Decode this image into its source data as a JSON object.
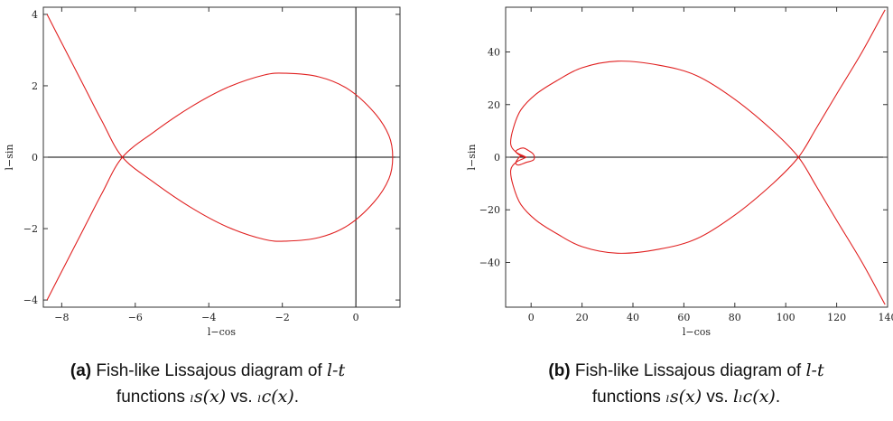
{
  "chart_data": [
    {
      "id": "a",
      "type": "line",
      "xlabel": "l−cos",
      "ylabel": "l−sin",
      "xlim": [
        -8.5,
        1.2
      ],
      "ylim": [
        -4.2,
        4.2
      ],
      "xticks": [
        -8,
        -6,
        -4,
        -2,
        0
      ],
      "xtick_labels": [
        "−8",
        "−6",
        "−4",
        "−2",
        "0"
      ],
      "yticks": [
        -4,
        -2,
        0,
        2,
        4
      ],
      "ytick_labels": [
        "−4",
        "−2",
        "0",
        "2",
        "4"
      ],
      "grid": false,
      "origin_axes": true,
      "series": [
        {
          "color": "#e02020",
          "x": [
            -8.4,
            -7.9,
            -7.4,
            -6.9,
            -6.35,
            -5.5,
            -4.5,
            -3.5,
            -2.5,
            -1.9,
            -1.0,
            -0.2,
            0.5,
            0.9,
            1.0,
            0.9,
            0.5,
            -0.2,
            -1.0,
            -1.9,
            -2.5,
            -3.5,
            -4.5,
            -5.5,
            -6.35,
            -6.9,
            -7.4,
            -7.9,
            -8.4
          ],
          "y": [
            -4.0,
            -3.0,
            -2.0,
            -1.0,
            0.0,
            0.7,
            1.4,
            1.95,
            2.3,
            2.35,
            2.25,
            1.9,
            1.25,
            0.6,
            0.0,
            -0.6,
            -1.25,
            -1.9,
            -2.25,
            -2.35,
            -2.3,
            -1.95,
            -1.4,
            -0.7,
            0.0,
            1.0,
            2.0,
            3.0,
            4.0
          ]
        }
      ]
    },
    {
      "id": "b",
      "type": "line",
      "xlabel": "l−cos",
      "ylabel": "l−sin",
      "xlim": [
        -10,
        140
      ],
      "ylim": [
        -57,
        57
      ],
      "xticks": [
        0,
        20,
        40,
        60,
        80,
        100,
        120,
        140
      ],
      "xtick_labels": [
        "0",
        "20",
        "40",
        "60",
        "80",
        "100",
        "120",
        "140"
      ],
      "yticks": [
        -40,
        -20,
        0,
        20,
        40
      ],
      "ytick_labels": [
        "−40",
        "−20",
        "0",
        "20",
        "40"
      ],
      "grid": false,
      "origin_axes": false,
      "series": [
        {
          "color": "#e02020",
          "x": [
            139,
            130,
            120,
            112,
            105,
            95,
            80,
            65,
            50,
            34,
            20,
            10,
            2,
            -4,
            -7,
            -8,
            -6,
            -3,
            -2,
            -4,
            -6,
            -5,
            -3,
            -1,
            1,
            1,
            -2,
            -5,
            -6,
            -4,
            -2,
            -3,
            -6,
            -8,
            -7,
            -4,
            2,
            10,
            20,
            34,
            50,
            65,
            80,
            95,
            105,
            112,
            120,
            130,
            139
          ],
          "y": [
            56,
            40,
            24,
            11,
            0,
            -10,
            -22,
            -31,
            -35,
            -36.5,
            -34,
            -29,
            -24,
            -18,
            -11,
            -5,
            -2,
            -0.5,
            0,
            0.5,
            2,
            3,
            3.5,
            2.5,
            1,
            -1,
            -2,
            -3,
            -2,
            0.5,
            0,
            0.5,
            2,
            5,
            11,
            18,
            24,
            29,
            34,
            36.5,
            35,
            31,
            22,
            10,
            0,
            -11,
            -24,
            -40,
            -56
          ]
        }
      ]
    }
  ],
  "captions": [
    {
      "tag": "(a)",
      "line1_text": "Fish-like Lissajous diagram of ",
      "line1_math": "l-t",
      "line2_text_1": "functions ",
      "line2_math_1": "ₗs(x)",
      "line2_text_2": " vs. ",
      "line2_math_2": "ₗc(x)",
      "line2_text_3": "."
    },
    {
      "tag": "(b)",
      "line1_text": "Fish-like Lissajous diagram of ",
      "line1_math": "l-t",
      "line2_text_1": "functions ",
      "line2_math_1": "ₗs(x)",
      "line2_text_2": " vs. ",
      "line2_math_2": "lₗc(x)",
      "line2_text_3": "."
    }
  ]
}
